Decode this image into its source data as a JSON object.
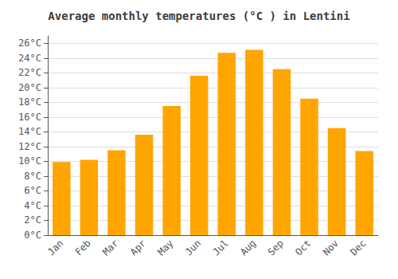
{
  "chart_data": {
    "type": "bar",
    "title": "Average monthly temperatures (°C ) in Lentini",
    "categories": [
      "Jan",
      "Feb",
      "Mar",
      "Apr",
      "May",
      "Jun",
      "Jul",
      "Aug",
      "Sep",
      "Oct",
      "Nov",
      "Dec"
    ],
    "values": [
      9.9,
      10.2,
      11.5,
      13.6,
      17.5,
      21.6,
      24.7,
      25.1,
      22.5,
      18.5,
      14.5,
      11.4
    ],
    "color": "#FFA500",
    "ylim": [
      0,
      27
    ],
    "yticks": [
      {
        "value": 0,
        "label": "0°C"
      },
      {
        "value": 2,
        "label": "2°C"
      },
      {
        "value": 4,
        "label": "4°C"
      },
      {
        "value": 6,
        "label": "6°C"
      },
      {
        "value": 8,
        "label": "8°C"
      },
      {
        "value": 10,
        "label": "10°C"
      },
      {
        "value": 12,
        "label": "12°C"
      },
      {
        "value": 14,
        "label": "14°C"
      },
      {
        "value": 16,
        "label": "16°C"
      },
      {
        "value": 18,
        "label": "18°C"
      },
      {
        "value": 20,
        "label": "20°C"
      },
      {
        "value": 22,
        "label": "22°C"
      },
      {
        "value": 24,
        "label": "24°C"
      },
      {
        "value": 26,
        "label": "26°C"
      }
    ],
    "grid": true
  }
}
